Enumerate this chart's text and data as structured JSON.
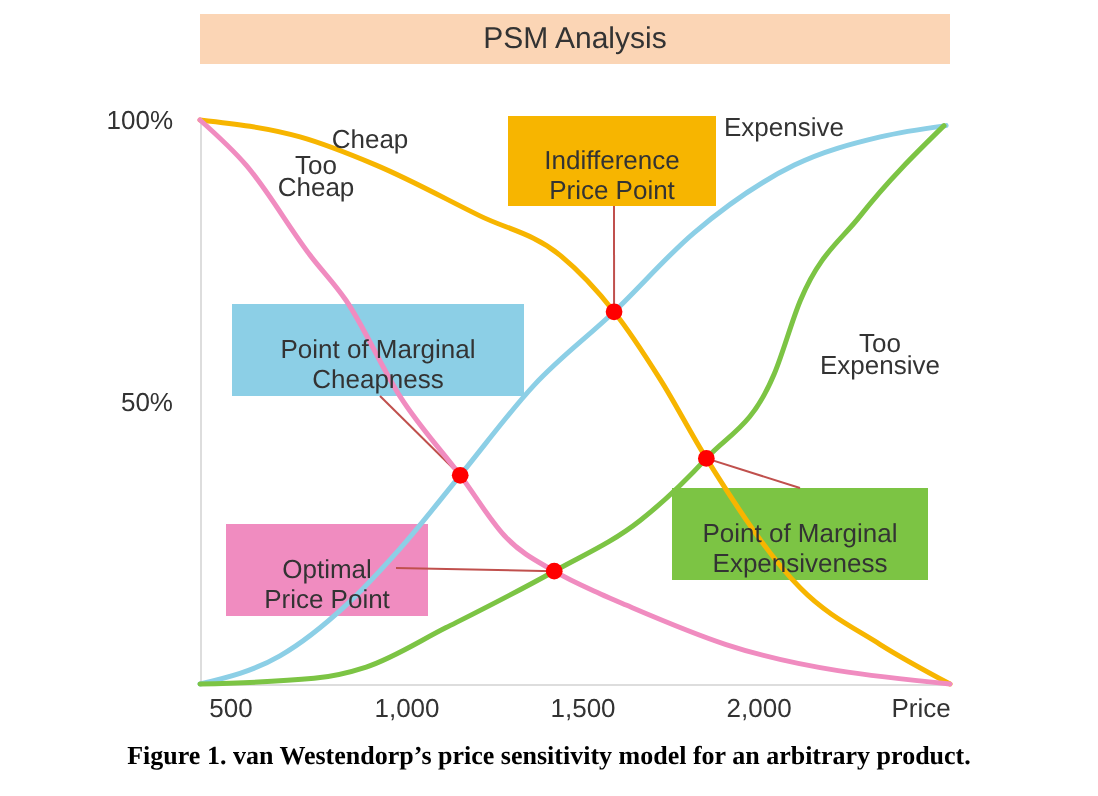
{
  "chart_data": {
    "type": "line",
    "title": "PSM Analysis",
    "xlabel": "Price",
    "xlim": [
      415,
      2545
    ],
    "ylim": [
      0,
      100
    ],
    "xticks": [
      500,
      {
        "value": 1000,
        "label": "1,000"
      },
      {
        "value": 1500,
        "label": "1,500"
      },
      {
        "value": 2000,
        "label": "2,000"
      }
    ],
    "yticks": [
      {
        "value": 50,
        "label": "50%"
      },
      {
        "value": 100,
        "label": "100%"
      }
    ],
    "series": [
      {
        "name": "Cheap",
        "color": "#f7b500",
        "x": [
          415,
          699,
          915,
          1210,
          1438,
          1591,
          1722,
          1853,
          2120,
          2347,
          2545
        ],
        "values": [
          100,
          97,
          92,
          83,
          76,
          66,
          54,
          40,
          17,
          7,
          0
        ]
      },
      {
        "name": "Too\nCheap",
        "color": "#f08cc0",
        "x": [
          415,
          546,
          728,
          830,
          983,
          1154,
          1284,
          1421,
          1551,
          1625,
          1909,
          2545
        ],
        "values": [
          100,
          92,
          76,
          68,
          51,
          37,
          26,
          20,
          16,
          14,
          7,
          0
        ]
      },
      {
        "name": "Expensive",
        "color": "#8ccfe6",
        "x": [
          415,
          642,
          830,
          983,
          1154,
          1364,
          1591,
          1818,
          2103,
          2347,
          2534
        ],
        "values": [
          0,
          5,
          14,
          24,
          37,
          53,
          66,
          80,
          92,
          97,
          99
        ]
      },
      {
        "name": "Too\nExpensive",
        "color": "#7cc444",
        "x": [
          415,
          739,
          887,
          1114,
          1421,
          1665,
          1853,
          2046,
          2120,
          2290,
          2528
        ],
        "values": [
          0,
          1,
          3,
          10,
          20,
          29,
          40,
          55,
          68,
          83,
          99
        ]
      }
    ],
    "annotations": [
      {
        "text": "Point of Marginal\nCheapness",
        "x": 1154,
        "y": 37
      },
      {
        "text": "Optimal\nPrice Point",
        "x": 1421,
        "y": 20
      },
      {
        "text": "Indifference\nPrice Point",
        "x": 1591,
        "y": 66
      },
      {
        "text": "Point of Marginal\nExpensiveness",
        "x": 1853,
        "y": 40
      },
      "Figure 1. van Westendorp’s price sensitivity model for an arbitrary product."
    ]
  }
}
